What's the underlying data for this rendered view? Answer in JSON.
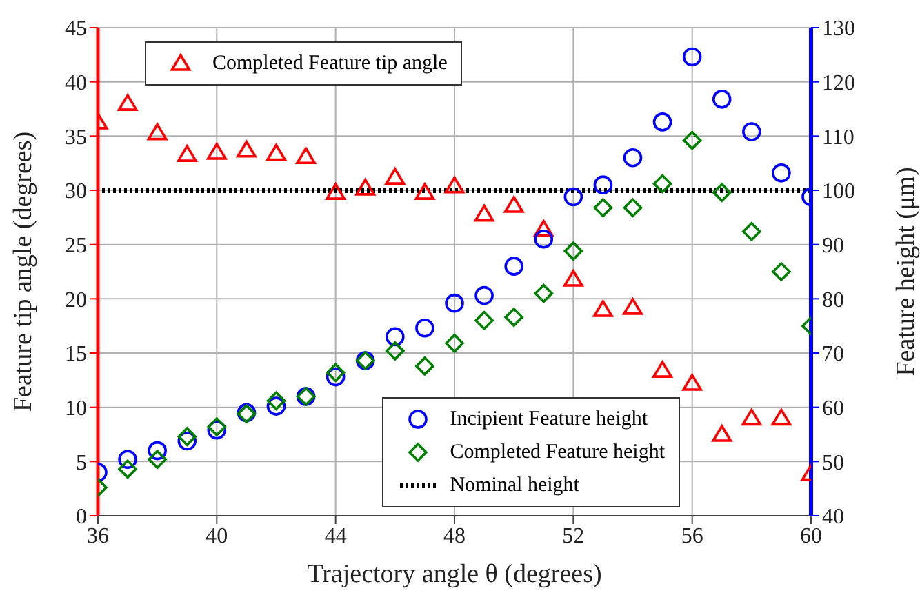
{
  "chart_data": {
    "type": "scatter",
    "xlabel": "Trajectory angle θ  (degrees)",
    "ylabel": "Feature tip angle  (degrees)",
    "y2label": "Feature height  (μm)",
    "x": [
      36,
      37,
      38,
      39,
      40,
      41,
      42,
      43,
      44,
      45,
      46,
      47,
      48,
      49,
      50,
      51,
      52,
      53,
      54,
      55,
      56,
      57,
      58,
      59,
      60
    ],
    "series": [
      {
        "name": "Completed Feature tip angle",
        "color": "#ff0000",
        "marker": "triangle",
        "values": [
          36.3,
          38,
          35.3,
          33.3,
          33.5,
          33.7,
          33.4,
          33.1,
          29.8,
          30.2,
          31.2,
          29.8,
          30.4,
          27.8,
          28.6,
          26.4,
          21.8,
          19,
          19.2,
          13.4,
          12.2,
          7.5,
          9,
          9,
          3.9
        ]
      },
      {
        "name": "Incipient Feature height",
        "color": "#0000ff",
        "marker": "circle",
        "axis": "y2",
        "values": [
          48,
          50.4,
          52,
          53.8,
          55.8,
          59,
          60.2,
          62,
          65.6,
          68.6,
          73,
          74.6,
          79.2,
          80.6,
          86,
          91,
          98.8,
          101,
          106,
          112.6,
          124.6,
          116.8,
          110.8,
          103.2,
          98.8
        ]
      },
      {
        "name": "Completed Feature height",
        "color": "#008000",
        "marker": "diamond",
        "axis": "y2",
        "values": [
          45.2,
          48.6,
          50.4,
          54.6,
          56.4,
          58.8,
          61.2,
          62,
          66.4,
          68.6,
          70.4,
          67.6,
          71.8,
          76,
          76.6,
          81,
          88.8,
          96.8,
          96.8,
          101.2,
          109.2,
          99.6,
          92.4,
          85,
          75
        ]
      }
    ],
    "ref_lines": [
      {
        "axis": "y2",
        "value": 100,
        "label": "Nominal height",
        "color": "#000000",
        "line_style": "dotted"
      }
    ],
    "xlim": [
      36,
      60
    ],
    "xticks": [
      36,
      40,
      44,
      48,
      52,
      56,
      60
    ],
    "ylim": [
      0,
      45
    ],
    "yticks": [
      0,
      5,
      10,
      15,
      20,
      25,
      30,
      35,
      40,
      45
    ],
    "y2lim": [
      40,
      130
    ],
    "y2ticks": [
      40,
      50,
      60,
      70,
      80,
      90,
      100,
      110,
      120,
      130
    ],
    "grid": true,
    "legend": "bottom"
  }
}
